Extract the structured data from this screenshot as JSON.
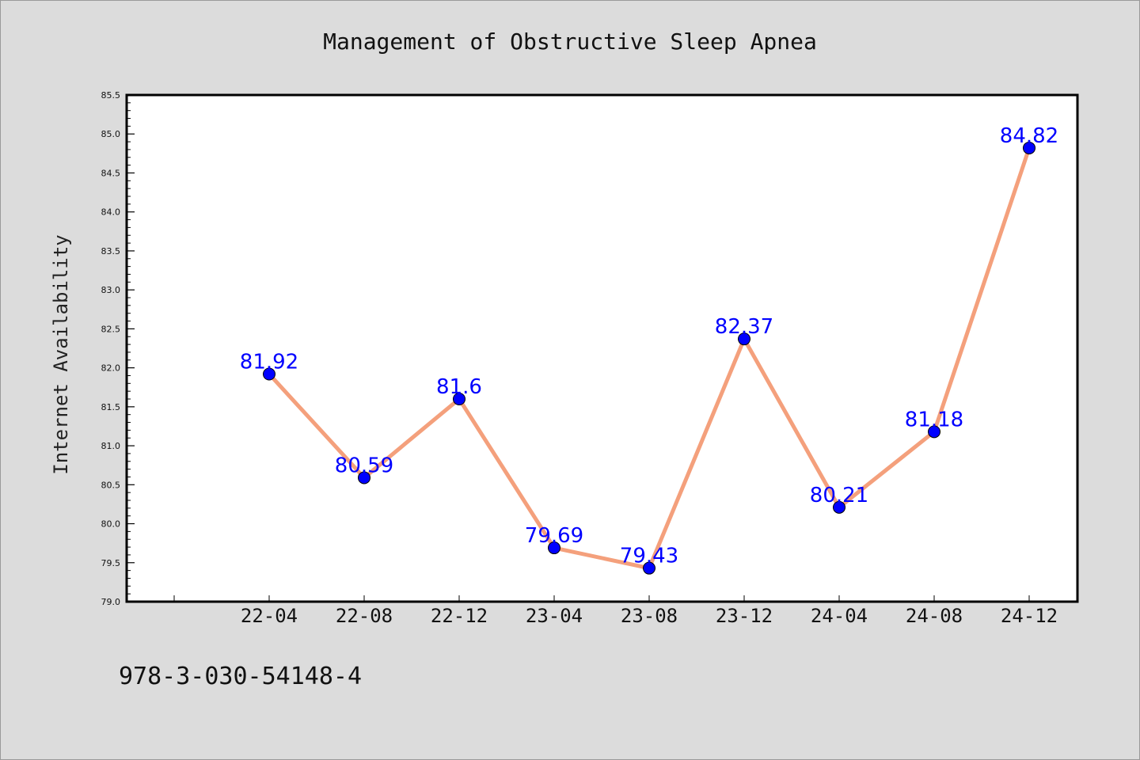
{
  "chart_data": {
    "type": "line",
    "title": "Management of Obstructive Sleep Apnea",
    "xlabel": "",
    "ylabel": "Internet Availability",
    "categories": [
      "22-04",
      "22-08",
      "22-12",
      "23-04",
      "23-08",
      "23-12",
      "24-04",
      "24-08",
      "24-12"
    ],
    "series": [
      {
        "values": [
          81.92,
          80.59,
          81.6,
          79.69,
          79.43,
          82.37,
          80.21,
          81.18,
          84.82
        ],
        "data_labels": [
          "81.92",
          "80.59",
          "81.6",
          "79.69",
          "79.43",
          "82.37",
          "80.21",
          "81.18",
          "84.82"
        ]
      }
    ],
    "ylim": [
      79.0,
      85.5
    ],
    "yticks": [
      "79.0",
      "79.5",
      "80.0",
      "80.5",
      "81.0",
      "81.5",
      "82.0",
      "82.5",
      "83.0",
      "83.5",
      "84.0",
      "84.5",
      "85.0",
      "85.5"
    ],
    "grid": false,
    "legend": "none",
    "colors": {
      "line": "#f4a07c",
      "marker": "#0000ff",
      "label": "#0000ff",
      "background": "#dcdcdc",
      "plot_background": "#ffffff"
    }
  },
  "footer": {
    "isbn": "978-3-030-54148-4"
  }
}
